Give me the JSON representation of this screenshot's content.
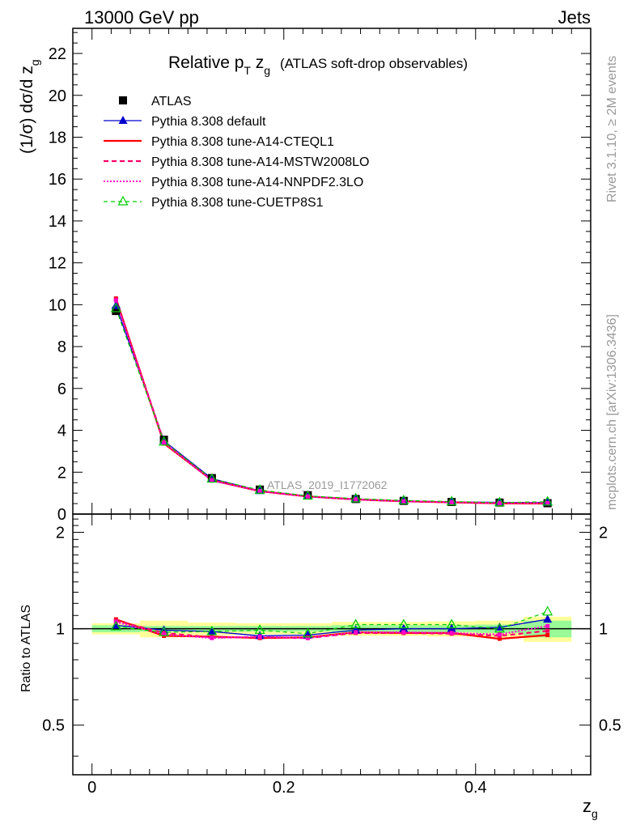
{
  "header": {
    "left": "13000 GeV pp",
    "right": "Jets"
  },
  "side": {
    "rivet": "Rivet 3.1.10, ≥ 2M events",
    "mcplots": "mcplots.cern.ch [arXiv:1306.3436]"
  },
  "watermark": "ATLAS_2019_I1772062",
  "colors": {
    "atlas": "#000000",
    "default": "#0000cc",
    "cteql1": "#ff0000",
    "mstw": "#ff0066",
    "nnpdf": "#ff00cc",
    "cuetp8s1": "#00cc00",
    "band_inner": "#98fb98",
    "band_outer": "#ffff99"
  },
  "chart_data": [
    {
      "type": "line",
      "title_main": "Relative p",
      "title_sub_T": "T",
      "title_z": " z",
      "title_sub_g": "g",
      "title_extra": "(ATLAS soft-drop observables)",
      "ylabel_pre": "(1/σ) dσ/d z",
      "ylabel_sub": "g",
      "xlim": [
        -0.02,
        0.52
      ],
      "ylim": [
        0,
        23.2
      ],
      "yticks": [
        0,
        2,
        4,
        6,
        8,
        10,
        12,
        14,
        16,
        18,
        20,
        22
      ],
      "ytick_labels": [
        "0",
        "2",
        "4",
        "6",
        "8",
        "10",
        "12",
        "14",
        "16",
        "18",
        "20",
        "22"
      ],
      "x": [
        0.025,
        0.075,
        0.125,
        0.175,
        0.225,
        0.275,
        0.325,
        0.375,
        0.425,
        0.475
      ],
      "series": [
        {
          "key": "atlas",
          "name": "ATLAS",
          "values": [
            9.7,
            3.55,
            1.72,
            1.17,
            0.9,
            0.72,
            0.63,
            0.58,
            0.55,
            0.52
          ]
        },
        {
          "key": "default",
          "name": "Pythia 8.308 default",
          "values": [
            9.95,
            3.5,
            1.69,
            1.11,
            0.86,
            0.71,
            0.63,
            0.58,
            0.56,
            0.55
          ]
        },
        {
          "key": "cteql1",
          "name": "Pythia 8.308 tune-A14-CTEQL1",
          "values": [
            10.3,
            3.37,
            1.62,
            1.09,
            0.84,
            0.7,
            0.61,
            0.56,
            0.51,
            0.5
          ]
        },
        {
          "key": "mstw",
          "name": "Pythia 8.308 tune-A14-MSTW2008LO",
          "values": [
            10.25,
            3.45,
            1.61,
            1.1,
            0.84,
            0.7,
            0.61,
            0.56,
            0.52,
            0.51
          ]
        },
        {
          "key": "nnpdf",
          "name": "Pythia 8.308 tune-A14-NNPDF2.3LO",
          "values": [
            10.2,
            3.4,
            1.6,
            1.1,
            0.84,
            0.7,
            0.61,
            0.57,
            0.53,
            0.53
          ]
        },
        {
          "key": "cuetp8s1",
          "name": "Pythia 8.308 tune-CUETP8S1",
          "values": [
            9.82,
            3.45,
            1.68,
            1.15,
            0.87,
            0.74,
            0.65,
            0.6,
            0.55,
            0.59
          ]
        }
      ]
    },
    {
      "type": "line",
      "ylabel": "Ratio to ATLAS",
      "xlabel": "z",
      "xlabel_sub": "g",
      "xlim": [
        -0.02,
        0.52
      ],
      "ylim": [
        0.35,
        2.28
      ],
      "log_y": true,
      "xticks": [
        0,
        0.2,
        0.4
      ],
      "xtick_labels": [
        "0",
        "0.2",
        "0.4"
      ],
      "yticks": [
        0.5,
        1,
        2
      ],
      "ytick_labels": [
        "0.5",
        "1",
        "2"
      ],
      "x": [
        0.025,
        0.075,
        0.125,
        0.175,
        0.225,
        0.275,
        0.325,
        0.375,
        0.425,
        0.475
      ],
      "bands": {
        "inner": [
          0.025,
          0.02,
          0.02,
          0.02,
          0.02,
          0.025,
          0.025,
          0.025,
          0.03,
          0.06
        ],
        "outer": [
          0.04,
          0.06,
          0.045,
          0.04,
          0.04,
          0.05,
          0.05,
          0.055,
          0.06,
          0.09
        ]
      },
      "series": [
        {
          "key": "default",
          "values": [
            1.025,
            0.99,
            0.98,
            0.95,
            0.955,
            0.99,
            1.0,
            1.0,
            1.01,
            1.07
          ]
        },
        {
          "key": "cteql1",
          "values": [
            1.07,
            0.95,
            0.945,
            0.935,
            0.94,
            0.975,
            0.97,
            0.97,
            0.93,
            0.955
          ]
        },
        {
          "key": "mstw",
          "values": [
            1.06,
            0.97,
            0.94,
            0.94,
            0.935,
            0.97,
            0.97,
            0.965,
            0.95,
            0.985
          ]
        },
        {
          "key": "nnpdf",
          "values": [
            1.05,
            0.96,
            0.935,
            0.945,
            0.935,
            0.975,
            0.975,
            0.97,
            0.96,
            1.02
          ]
        },
        {
          "key": "cuetp8s1",
          "values": [
            1.015,
            0.975,
            0.98,
            0.99,
            0.965,
            1.03,
            1.03,
            1.03,
            1.0,
            1.13
          ]
        }
      ]
    }
  ]
}
